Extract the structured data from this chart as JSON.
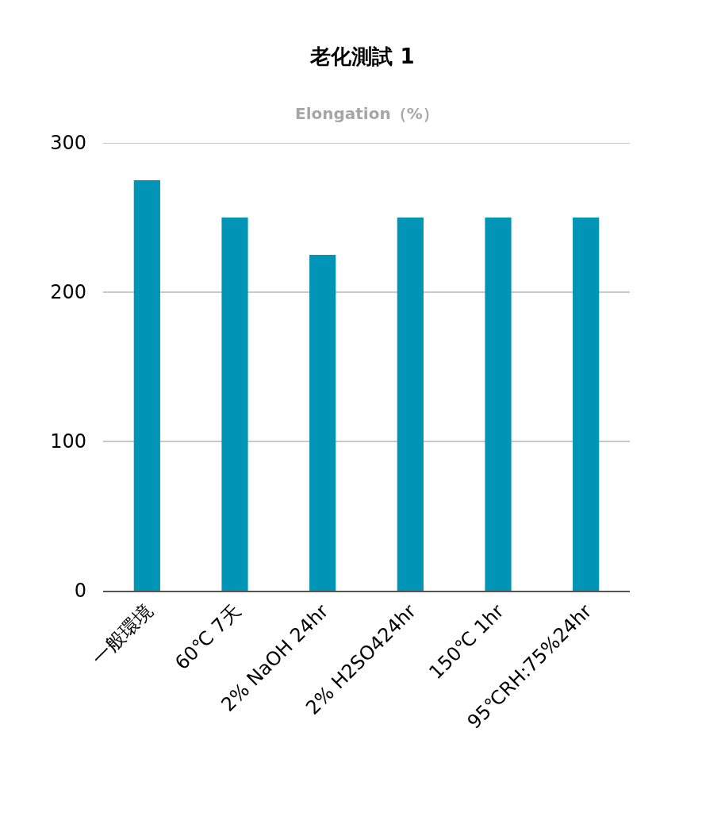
{
  "chart_data": {
    "type": "bar",
    "title": "老化測試 1",
    "subtitle": "Elongation（%）",
    "categories": [
      "一般環境",
      "60℃ 7天",
      "2% NaOH 24hr",
      "2% H2SO424hr",
      "150℃ 1hr",
      "95℃RH:75%24hr"
    ],
    "values": [
      275,
      250,
      225,
      250,
      250,
      250
    ],
    "color": "#0095b6",
    "ylim": [
      0,
      300
    ],
    "yticks": [
      0,
      100,
      200,
      300
    ],
    "grid": "y"
  }
}
